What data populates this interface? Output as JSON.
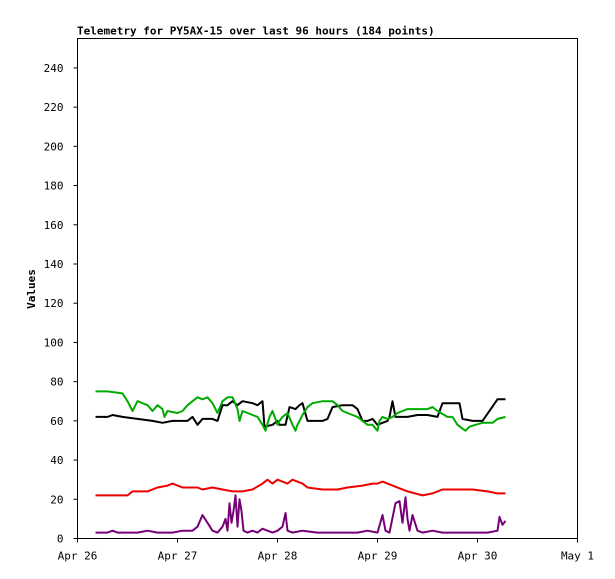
{
  "chart_data": {
    "type": "line",
    "title": "Telemetry for PY5AX-15 over last 96 hours (184 points)",
    "xlabel": "",
    "ylabel": "Values",
    "x_ticks": [
      "Apr 26",
      "Apr 27",
      "Apr 28",
      "Apr 29",
      "Apr 30",
      "May 1"
    ],
    "y_ticks": [
      "0",
      "20",
      "40",
      "60",
      "80",
      "100",
      "120",
      "140",
      "160",
      "180",
      "200",
      "220",
      "240"
    ],
    "xlim": [
      0,
      5
    ],
    "ylim": [
      0,
      255
    ],
    "grid": false,
    "colors": {
      "black": "#000000",
      "green": "#00aa00",
      "red": "#ee0000",
      "purple": "#770077"
    },
    "series": [
      {
        "color": "#000000",
        "points": [
          [
            0.18,
            62
          ],
          [
            0.3,
            62
          ],
          [
            0.35,
            63
          ],
          [
            0.45,
            62
          ],
          [
            0.6,
            61
          ],
          [
            0.75,
            60
          ],
          [
            0.85,
            59
          ],
          [
            0.95,
            60
          ],
          [
            1.1,
            60
          ],
          [
            1.15,
            62
          ],
          [
            1.2,
            58
          ],
          [
            1.25,
            61
          ],
          [
            1.35,
            61
          ],
          [
            1.4,
            60
          ],
          [
            1.45,
            68
          ],
          [
            1.5,
            68
          ],
          [
            1.55,
            70
          ],
          [
            1.6,
            68
          ],
          [
            1.65,
            70
          ],
          [
            1.75,
            69
          ],
          [
            1.8,
            68
          ],
          [
            1.85,
            70
          ],
          [
            1.87,
            57
          ],
          [
            1.95,
            58
          ],
          [
            2.0,
            60
          ],
          [
            2.02,
            58
          ],
          [
            2.08,
            58
          ],
          [
            2.12,
            67
          ],
          [
            2.18,
            66
          ],
          [
            2.22,
            68
          ],
          [
            2.25,
            69
          ],
          [
            2.3,
            60
          ],
          [
            2.45,
            60
          ],
          [
            2.5,
            61
          ],
          [
            2.55,
            67
          ],
          [
            2.65,
            68
          ],
          [
            2.75,
            68
          ],
          [
            2.8,
            66
          ],
          [
            2.85,
            60
          ],
          [
            2.9,
            60
          ],
          [
            2.95,
            61
          ],
          [
            3.0,
            58
          ],
          [
            3.05,
            59
          ],
          [
            3.1,
            60
          ],
          [
            3.12,
            62
          ],
          [
            3.15,
            70
          ],
          [
            3.18,
            62
          ],
          [
            3.3,
            62
          ],
          [
            3.4,
            63
          ],
          [
            3.5,
            63
          ],
          [
            3.6,
            62
          ],
          [
            3.65,
            69
          ],
          [
            3.82,
            69
          ],
          [
            3.85,
            61
          ],
          [
            3.95,
            60
          ],
          [
            4.0,
            60
          ],
          [
            4.05,
            60
          ],
          [
            4.2,
            71
          ],
          [
            4.28,
            71
          ]
        ]
      },
      {
        "color": "#00aa00",
        "points": [
          [
            0.18,
            75
          ],
          [
            0.3,
            75
          ],
          [
            0.45,
            74
          ],
          [
            0.5,
            70
          ],
          [
            0.55,
            65
          ],
          [
            0.6,
            70
          ],
          [
            0.7,
            68
          ],
          [
            0.75,
            65
          ],
          [
            0.8,
            68
          ],
          [
            0.85,
            66
          ],
          [
            0.87,
            62
          ],
          [
            0.9,
            65
          ],
          [
            1.0,
            64
          ],
          [
            1.05,
            65
          ],
          [
            1.1,
            68
          ],
          [
            1.15,
            70
          ],
          [
            1.2,
            72
          ],
          [
            1.25,
            71
          ],
          [
            1.3,
            72
          ],
          [
            1.35,
            69
          ],
          [
            1.4,
            64
          ],
          [
            1.45,
            70
          ],
          [
            1.5,
            72
          ],
          [
            1.55,
            72
          ],
          [
            1.6,
            66
          ],
          [
            1.62,
            60
          ],
          [
            1.65,
            65
          ],
          [
            1.7,
            64
          ],
          [
            1.8,
            62
          ],
          [
            1.85,
            58
          ],
          [
            1.88,
            55
          ],
          [
            1.92,
            62
          ],
          [
            1.95,
            65
          ],
          [
            2.0,
            58
          ],
          [
            2.02,
            60
          ],
          [
            2.05,
            62
          ],
          [
            2.1,
            64
          ],
          [
            2.15,
            58
          ],
          [
            2.18,
            55
          ],
          [
            2.2,
            58
          ],
          [
            2.25,
            63
          ],
          [
            2.3,
            67
          ],
          [
            2.35,
            69
          ],
          [
            2.45,
            70
          ],
          [
            2.55,
            70
          ],
          [
            2.6,
            68
          ],
          [
            2.65,
            65
          ],
          [
            2.7,
            64
          ],
          [
            2.75,
            63
          ],
          [
            2.8,
            62
          ],
          [
            2.85,
            60
          ],
          [
            2.9,
            58
          ],
          [
            2.95,
            58
          ],
          [
            3.0,
            55
          ],
          [
            3.02,
            60
          ],
          [
            3.05,
            62
          ],
          [
            3.1,
            61
          ],
          [
            3.15,
            62
          ],
          [
            3.2,
            64
          ],
          [
            3.3,
            66
          ],
          [
            3.4,
            66
          ],
          [
            3.5,
            66
          ],
          [
            3.55,
            67
          ],
          [
            3.6,
            65
          ],
          [
            3.7,
            62
          ],
          [
            3.75,
            62
          ],
          [
            3.8,
            58
          ],
          [
            3.85,
            56
          ],
          [
            3.88,
            55
          ],
          [
            3.92,
            57
          ],
          [
            3.98,
            58
          ],
          [
            4.05,
            59
          ],
          [
            4.15,
            59
          ],
          [
            4.2,
            61
          ],
          [
            4.28,
            62
          ]
        ]
      },
      {
        "color": "#ee0000",
        "points": [
          [
            0.18,
            22
          ],
          [
            0.5,
            22
          ],
          [
            0.55,
            24
          ],
          [
            0.7,
            24
          ],
          [
            0.8,
            26
          ],
          [
            0.9,
            27
          ],
          [
            0.95,
            28
          ],
          [
            1.05,
            26
          ],
          [
            1.2,
            26
          ],
          [
            1.25,
            25
          ],
          [
            1.35,
            26
          ],
          [
            1.45,
            25
          ],
          [
            1.55,
            24
          ],
          [
            1.65,
            24
          ],
          [
            1.75,
            25
          ],
          [
            1.85,
            28
          ],
          [
            1.9,
            30
          ],
          [
            1.95,
            28
          ],
          [
            2.0,
            30
          ],
          [
            2.1,
            28
          ],
          [
            2.15,
            30
          ],
          [
            2.25,
            28
          ],
          [
            2.3,
            26
          ],
          [
            2.45,
            25
          ],
          [
            2.6,
            25
          ],
          [
            2.7,
            26
          ],
          [
            2.85,
            27
          ],
          [
            2.95,
            28
          ],
          [
            3.0,
            28
          ],
          [
            3.05,
            29
          ],
          [
            3.1,
            28
          ],
          [
            3.15,
            27
          ],
          [
            3.3,
            24
          ],
          [
            3.45,
            22
          ],
          [
            3.55,
            23
          ],
          [
            3.65,
            25
          ],
          [
            3.8,
            25
          ],
          [
            3.95,
            25
          ],
          [
            4.1,
            24
          ],
          [
            4.2,
            23
          ],
          [
            4.28,
            23
          ]
        ]
      },
      {
        "color": "#770077",
        "points": [
          [
            0.18,
            3
          ],
          [
            0.3,
            3
          ],
          [
            0.35,
            4
          ],
          [
            0.4,
            3
          ],
          [
            0.6,
            3
          ],
          [
            0.7,
            4
          ],
          [
            0.8,
            3
          ],
          [
            0.95,
            3
          ],
          [
            1.05,
            4
          ],
          [
            1.15,
            4
          ],
          [
            1.2,
            6
          ],
          [
            1.25,
            12
          ],
          [
            1.3,
            8
          ],
          [
            1.35,
            4
          ],
          [
            1.4,
            3
          ],
          [
            1.45,
            6
          ],
          [
            1.48,
            10
          ],
          [
            1.5,
            4
          ],
          [
            1.52,
            18
          ],
          [
            1.54,
            8
          ],
          [
            1.56,
            14
          ],
          [
            1.58,
            22
          ],
          [
            1.6,
            6
          ],
          [
            1.62,
            20
          ],
          [
            1.64,
            14
          ],
          [
            1.66,
            4
          ],
          [
            1.7,
            3
          ],
          [
            1.75,
            4
          ],
          [
            1.8,
            3
          ],
          [
            1.85,
            5
          ],
          [
            1.9,
            4
          ],
          [
            1.95,
            3
          ],
          [
            2.0,
            4
          ],
          [
            2.05,
            6
          ],
          [
            2.08,
            13
          ],
          [
            2.1,
            4
          ],
          [
            2.15,
            3
          ],
          [
            2.25,
            4
          ],
          [
            2.4,
            3
          ],
          [
            2.6,
            3
          ],
          [
            2.8,
            3
          ],
          [
            2.9,
            4
          ],
          [
            3.0,
            3
          ],
          [
            3.05,
            12
          ],
          [
            3.08,
            4
          ],
          [
            3.12,
            3
          ],
          [
            3.18,
            18
          ],
          [
            3.22,
            19
          ],
          [
            3.25,
            8
          ],
          [
            3.28,
            21
          ],
          [
            3.3,
            10
          ],
          [
            3.32,
            4
          ],
          [
            3.35,
            12
          ],
          [
            3.4,
            4
          ],
          [
            3.45,
            3
          ],
          [
            3.55,
            4
          ],
          [
            3.65,
            3
          ],
          [
            3.8,
            3
          ],
          [
            3.95,
            3
          ],
          [
            4.1,
            3
          ],
          [
            4.2,
            4
          ],
          [
            4.22,
            11
          ],
          [
            4.25,
            7
          ],
          [
            4.28,
            9
          ]
        ]
      }
    ]
  }
}
